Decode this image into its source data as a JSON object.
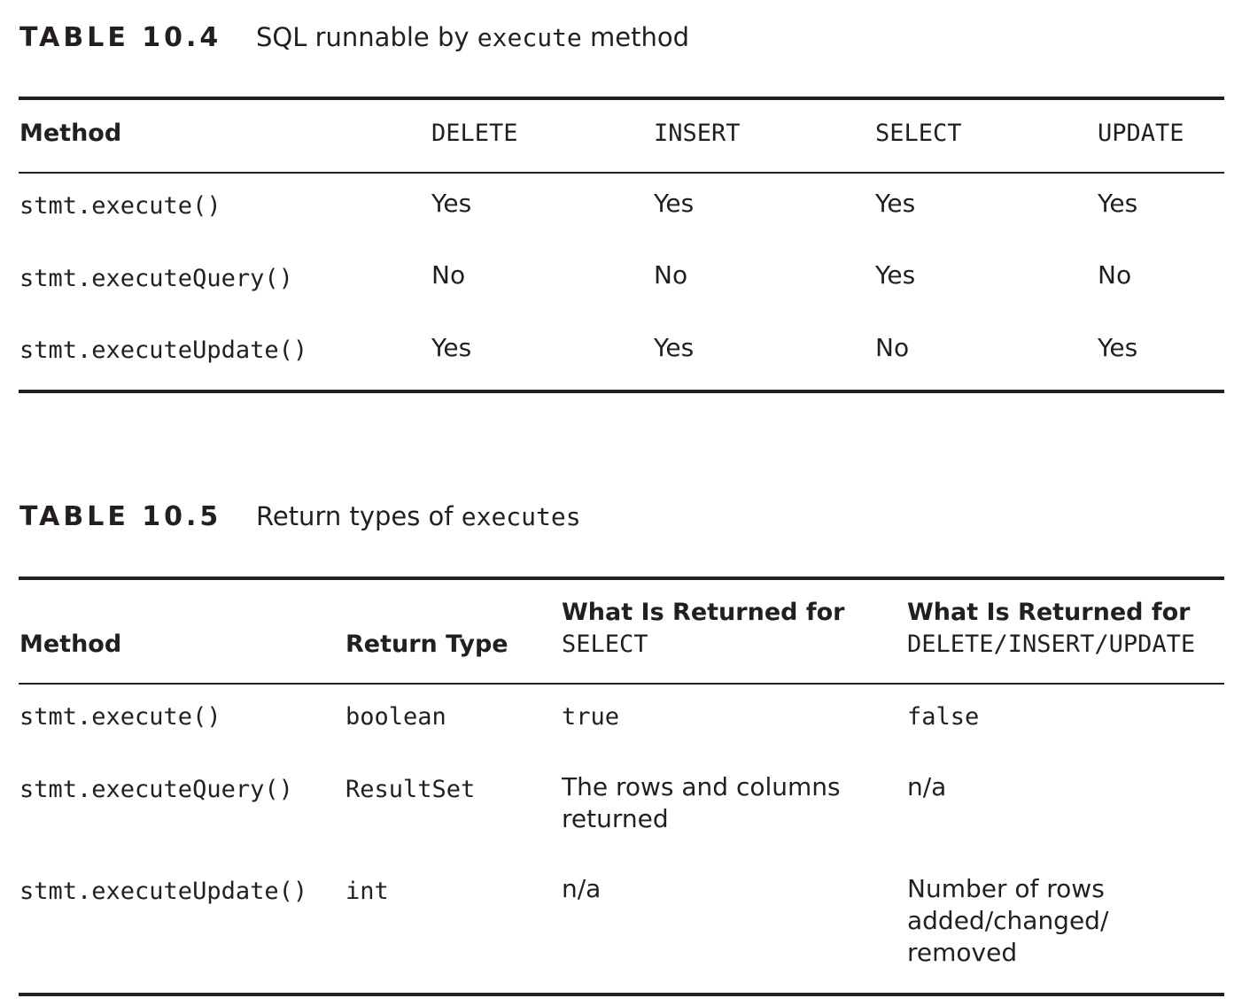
{
  "table1": {
    "label": "TABLE 10.4",
    "title_prefix": "SQL runnable by ",
    "title_code": "execute",
    "title_suffix": " method",
    "headers": [
      "Method",
      "DELETE",
      "INSERT",
      "SELECT",
      "UPDATE"
    ],
    "rows": [
      [
        "stmt.execute()",
        "Yes",
        "Yes",
        "Yes",
        "Yes"
      ],
      [
        "stmt.executeQuery()",
        "No",
        "No",
        "Yes",
        "No"
      ],
      [
        "stmt.executeUpdate()",
        "Yes",
        "Yes",
        "No",
        "Yes"
      ]
    ]
  },
  "table2": {
    "label": "TABLE 10.5",
    "title_prefix": "Return types of ",
    "title_code": "executes",
    "headers": {
      "method": "Method",
      "return_type": "Return Type",
      "select_line1": "What Is Returned for",
      "select_line2": "SELECT",
      "dml_line1": "What Is Returned for",
      "dml_line2": "DELETE/INSERT/UPDATE"
    },
    "rows": [
      {
        "method": "stmt.execute()",
        "return_type": "boolean",
        "select": [
          "true"
        ],
        "dml": [
          "false"
        ]
      },
      {
        "method": "stmt.executeQuery()",
        "return_type": "ResultSet",
        "select": [
          "The rows and columns",
          "returned"
        ],
        "dml": [
          "n/a"
        ]
      },
      {
        "method": "stmt.executeUpdate()",
        "return_type": "int",
        "select": [
          "n/a"
        ],
        "dml": [
          "Number of rows",
          "added/changed/",
          "removed"
        ]
      }
    ]
  }
}
